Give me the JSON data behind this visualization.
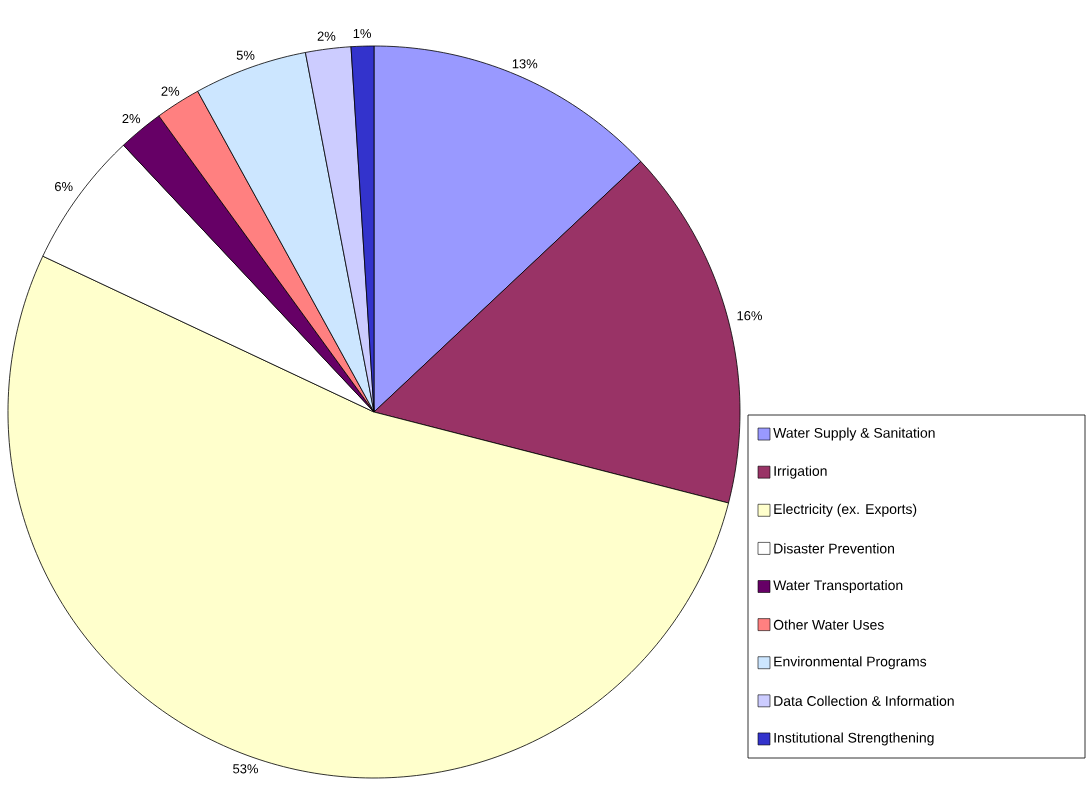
{
  "chart_data": {
    "type": "pie",
    "categories": [
      "Water Supply & Sanitation",
      "Irrigation",
      "Electricity (ex. Exports)",
      "Disaster Prevention",
      "Water Transportation",
      "Other Water Uses",
      "Environmental Programs",
      "Data Collection & Information",
      "Institutional Strengthening"
    ],
    "values": [
      13,
      16,
      53,
      6,
      2,
      2,
      5,
      2,
      1
    ],
    "colors": [
      "#9999ff",
      "#993366",
      "#ffffcc",
      "#ffffff",
      "#660066",
      "#ff8080",
      "#cce6ff",
      "#ccccff",
      "#3333cc"
    ],
    "value_labels": [
      "13%",
      "16%",
      "53%",
      "6%",
      "2%",
      "2%",
      "5%",
      "2%",
      "1%"
    ],
    "legend": "right"
  }
}
